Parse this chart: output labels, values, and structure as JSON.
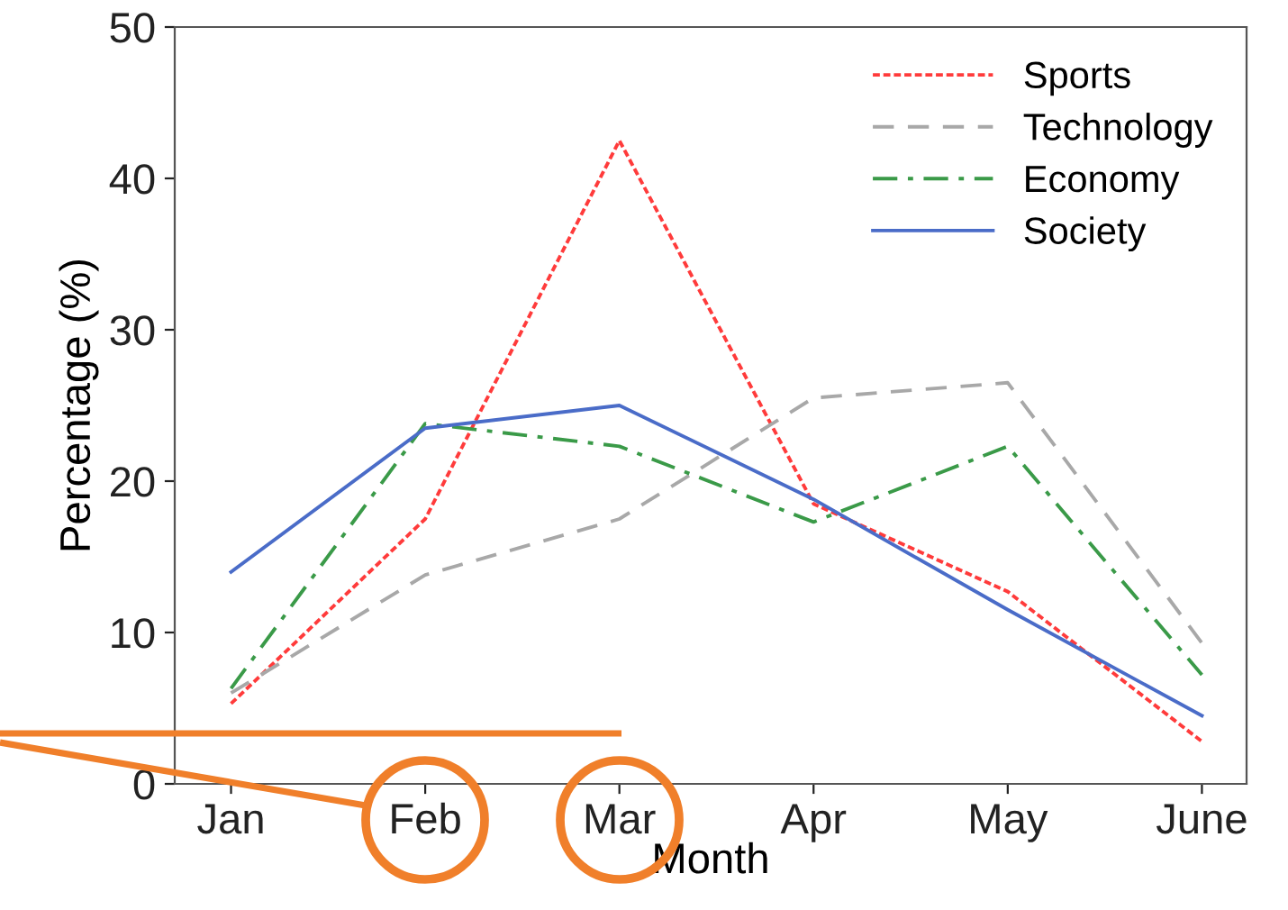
{
  "chart_data": {
    "type": "line",
    "xlabel": "Month",
    "ylabel": "Percentage (%)",
    "categories": [
      "Jan",
      "Feb",
      "Mar",
      "Apr",
      "May",
      "June"
    ],
    "series": [
      {
        "name": "Sports",
        "color": "#ff3b3b",
        "line_style": "dotted",
        "values": [
          5.3,
          17.5,
          42.5,
          18.5,
          12.7,
          2.8
        ]
      },
      {
        "name": "Technology",
        "color": "#a8a8a8",
        "line_style": "dashed",
        "values": [
          6.0,
          13.8,
          17.5,
          25.5,
          26.5,
          9.3
        ]
      },
      {
        "name": "Economy",
        "color": "#3a9a48",
        "line_style": "dashdot",
        "values": [
          6.3,
          23.8,
          22.3,
          17.3,
          22.3,
          7.2
        ]
      },
      {
        "name": "Society",
        "color": "#4a6cc8",
        "line_style": "solid",
        "values": [
          14.0,
          23.5,
          25.0,
          18.8,
          11.5,
          4.5
        ]
      }
    ],
    "ylim": [
      0,
      50
    ],
    "yticks": [
      0,
      10,
      20,
      30,
      40,
      50
    ],
    "grid": false,
    "legend": "top right",
    "marker": "none"
  }
}
